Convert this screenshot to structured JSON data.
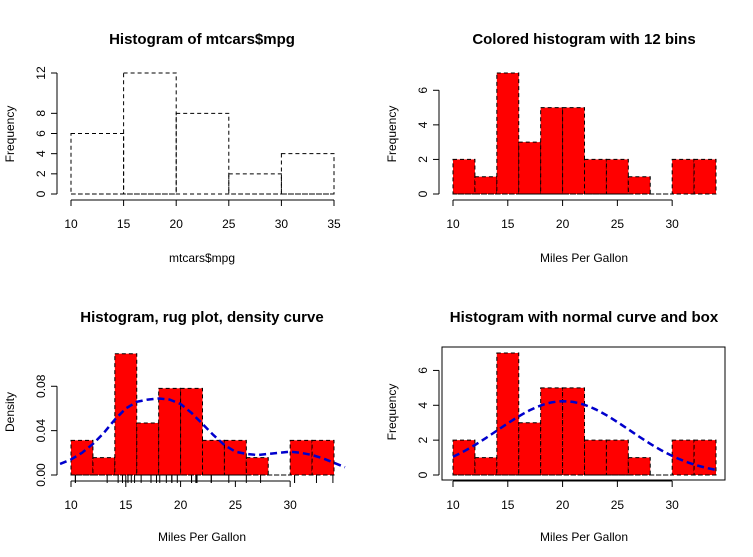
{
  "colors": {
    "bar_fill": "#ff0000",
    "outline": "#000000",
    "density_line": "#0000cc",
    "background": "#ffffff"
  },
  "chart_data": [
    {
      "type": "bar",
      "title": "Histogram of mtcars$mpg",
      "xlabel": "mtcars$mpg",
      "ylabel": "Frequency",
      "bins": [
        [
          10,
          15
        ],
        [
          15,
          20
        ],
        [
          20,
          25
        ],
        [
          25,
          30
        ],
        [
          30,
          35
        ]
      ],
      "values": [
        6,
        12,
        8,
        2,
        4
      ],
      "xlim": [
        10,
        35
      ],
      "ylim": [
        0,
        12
      ],
      "xticks": [
        "10",
        "15",
        "20",
        "25",
        "30",
        "35"
      ],
      "yticks": [
        "0",
        "2",
        "4",
        "6",
        "8",
        "12"
      ],
      "fill": "none",
      "border": "dashed",
      "box": false
    },
    {
      "type": "bar",
      "title": "Colored histogram with 12 bins",
      "xlabel": "Miles Per Gallon",
      "ylabel": "Frequency",
      "bins": [
        [
          10,
          12
        ],
        [
          12,
          14
        ],
        [
          14,
          16
        ],
        [
          16,
          18
        ],
        [
          18,
          20
        ],
        [
          20,
          22
        ],
        [
          22,
          24
        ],
        [
          24,
          26
        ],
        [
          26,
          28
        ],
        [
          28,
          30
        ],
        [
          30,
          32
        ],
        [
          32,
          34
        ]
      ],
      "values": [
        2,
        1,
        7,
        3,
        5,
        5,
        2,
        2,
        1,
        0,
        2,
        2
      ],
      "xlim": [
        10,
        34
      ],
      "ylim": [
        0,
        7
      ],
      "xticks": [
        "10",
        "15",
        "20",
        "25",
        "30"
      ],
      "yticks": [
        "0",
        "2",
        "4",
        "6"
      ],
      "fill": "red",
      "border": "dashed",
      "box": false
    },
    {
      "type": "bar",
      "title": "Histogram, rug plot, density curve",
      "xlabel": "Miles Per Gallon",
      "ylabel": "Density",
      "bins": [
        [
          10,
          12
        ],
        [
          12,
          14
        ],
        [
          14,
          16
        ],
        [
          16,
          18
        ],
        [
          18,
          20
        ],
        [
          20,
          22
        ],
        [
          22,
          24
        ],
        [
          24,
          26
        ],
        [
          26,
          28
        ],
        [
          28,
          30
        ],
        [
          30,
          32
        ],
        [
          32,
          34
        ]
      ],
      "values": [
        0.03125,
        0.015625,
        0.109375,
        0.046875,
        0.078125,
        0.078125,
        0.03125,
        0.03125,
        0.015625,
        0,
        0.03125,
        0.03125
      ],
      "xlim": [
        10,
        34
      ],
      "ylim": [
        0,
        0.11
      ],
      "xticks": [
        "10",
        "15",
        "20",
        "25",
        "30"
      ],
      "yticks": [
        "0.00",
        "0.04",
        "0.08"
      ],
      "fill": "red",
      "border": "dashed",
      "box": false,
      "density": {
        "x": [
          9.0,
          10,
          11,
          12,
          13,
          14,
          15,
          16,
          17,
          18,
          19,
          20,
          21,
          22,
          23,
          24,
          25,
          26,
          27,
          28,
          29,
          30,
          31,
          32,
          33,
          34,
          35.0
        ],
        "y": [
          0.01,
          0.014,
          0.02,
          0.028,
          0.038,
          0.05,
          0.06,
          0.066,
          0.068,
          0.069,
          0.068,
          0.064,
          0.056,
          0.046,
          0.036,
          0.027,
          0.021,
          0.019,
          0.018,
          0.019,
          0.02,
          0.021,
          0.02,
          0.018,
          0.015,
          0.011,
          0.007
        ]
      },
      "rug": [
        21.0,
        21.0,
        22.8,
        21.4,
        18.7,
        18.1,
        14.3,
        24.4,
        22.8,
        19.2,
        17.8,
        16.4,
        17.3,
        15.2,
        10.4,
        10.4,
        14.7,
        32.4,
        30.4,
        33.9,
        21.5,
        15.5,
        15.2,
        13.3,
        19.2,
        27.3,
        26.0,
        30.4,
        15.8,
        19.7,
        15.0,
        21.4
      ]
    },
    {
      "type": "bar",
      "title": "Histogram with normal curve and box",
      "xlabel": "Miles Per Gallon",
      "ylabel": "Frequency",
      "bins": [
        [
          10,
          12
        ],
        [
          12,
          14
        ],
        [
          14,
          16
        ],
        [
          16,
          18
        ],
        [
          18,
          20
        ],
        [
          20,
          22
        ],
        [
          22,
          24
        ],
        [
          24,
          26
        ],
        [
          26,
          28
        ],
        [
          28,
          30
        ],
        [
          30,
          32
        ],
        [
          32,
          34
        ]
      ],
      "values": [
        2,
        1,
        7,
        3,
        5,
        5,
        2,
        2,
        1,
        0,
        2,
        2
      ],
      "xlim": [
        10,
        34
      ],
      "ylim": [
        0,
        7
      ],
      "xticks": [
        "10",
        "15",
        "20",
        "25",
        "30"
      ],
      "yticks": [
        "0",
        "2",
        "4",
        "6"
      ],
      "fill": "red",
      "border": "dashed",
      "box": true,
      "normal": {
        "mean": 20.09,
        "sd": 6.03,
        "scale": 64
      }
    }
  ]
}
